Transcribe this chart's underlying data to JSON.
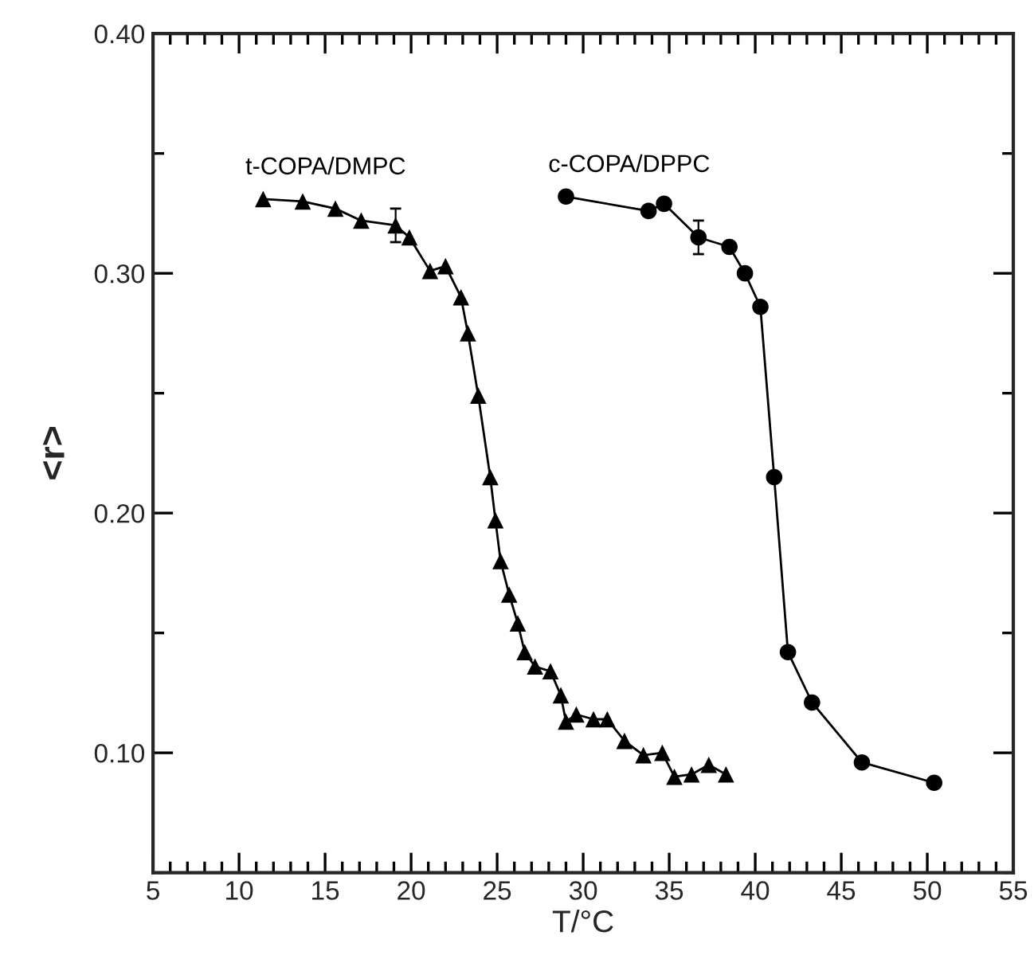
{
  "chart_data": {
    "type": "line",
    "xlabel": "T/°C",
    "ylabel": "<r>",
    "xlim": [
      5,
      55
    ],
    "ylim": [
      0.05,
      0.4
    ],
    "xticks": [
      5,
      10,
      15,
      20,
      25,
      30,
      35,
      40,
      45,
      50,
      55,
      {
        "value": 6,
        "label": null
      },
      {
        "value": 7,
        "label": null
      },
      {
        "value": 8,
        "label": null
      },
      {
        "value": 9,
        "label": null
      },
      {
        "value": 11,
        "label": null
      },
      {
        "value": 12,
        "label": null
      },
      {
        "value": 13,
        "label": null
      },
      {
        "value": 14,
        "label": null
      },
      {
        "value": 16,
        "label": null
      },
      {
        "value": 17,
        "label": null
      },
      {
        "value": 18,
        "label": null
      },
      {
        "value": 19,
        "label": null
      },
      {
        "value": 21,
        "label": null
      },
      {
        "value": 22,
        "label": null
      },
      {
        "value": 23,
        "label": null
      },
      {
        "value": 24,
        "label": null
      },
      {
        "value": 26,
        "label": null
      },
      {
        "value": 27,
        "label": null
      },
      {
        "value": 28,
        "label": null
      },
      {
        "value": 29,
        "label": null
      },
      {
        "value": 31,
        "label": null
      },
      {
        "value": 32,
        "label": null
      },
      {
        "value": 33,
        "label": null
      },
      {
        "value": 34,
        "label": null
      },
      {
        "value": 36,
        "label": null
      },
      {
        "value": 37,
        "label": null
      },
      {
        "value": 38,
        "label": null
      },
      {
        "value": 39,
        "label": null
      },
      {
        "value": 41,
        "label": null
      },
      {
        "value": 42,
        "label": null
      },
      {
        "value": 43,
        "label": null
      },
      {
        "value": 44,
        "label": null
      },
      {
        "value": 46,
        "label": null
      },
      {
        "value": 47,
        "label": null
      },
      {
        "value": 48,
        "label": null
      },
      {
        "value": 49,
        "label": null
      },
      {
        "value": 51,
        "label": null
      },
      {
        "value": 52,
        "label": null
      },
      {
        "value": 53,
        "label": null
      },
      {
        "value": 54,
        "label": null
      }
    ],
    "yticks": [
      {
        "value": 0.1,
        "label": "0.10"
      },
      {
        "value": 0.2,
        "label": "0.20"
      },
      {
        "value": 0.3,
        "label": "0.30"
      },
      {
        "value": 0.4,
        "label": "0.40"
      },
      {
        "value": 0.05,
        "label": null
      },
      {
        "value": 0.15,
        "label": null
      },
      {
        "value": 0.25,
        "label": null
      },
      {
        "value": 0.35,
        "label": null
      }
    ],
    "grid": false,
    "legend": false,
    "series": [
      {
        "name": "t-COPA/DMPC",
        "color": "#000000",
        "marker": "triangle",
        "line_style": "solid",
        "x": [
          11.4,
          13.7,
          15.6,
          17.1,
          19.1,
          19.9,
          21.1,
          22.0,
          22.9,
          23.3,
          23.9,
          24.6,
          24.9,
          25.2,
          25.7,
          26.2,
          26.6,
          27.2,
          28.1,
          28.7,
          29.0,
          29.6,
          30.6,
          31.4,
          32.4,
          33.5,
          34.6,
          35.3,
          36.3,
          37.3,
          38.3
        ],
        "values": [
          0.331,
          0.33,
          0.327,
          0.322,
          0.32,
          0.315,
          0.301,
          0.303,
          0.29,
          0.275,
          0.249,
          0.215,
          0.197,
          0.18,
          0.166,
          0.154,
          0.142,
          0.136,
          0.134,
          0.124,
          0.113,
          0.116,
          0.114,
          0.114,
          0.105,
          0.099,
          0.1,
          0.09,
          0.091,
          0.095,
          0.091
        ],
        "errors": [
          null,
          null,
          null,
          null,
          0.007,
          null,
          null,
          null,
          null,
          null,
          null,
          null,
          null,
          null,
          null,
          null,
          null,
          null,
          null,
          null,
          null,
          null,
          null,
          null,
          null,
          null,
          null,
          null,
          null,
          null,
          null
        ]
      },
      {
        "name": "c-COPA/DPPC",
        "color": "#000000",
        "marker": "circle",
        "line_style": "solid",
        "x": [
          29.0,
          33.8,
          34.7,
          36.7,
          38.5,
          39.4,
          40.3,
          41.1,
          41.9,
          43.3,
          46.2,
          50.4
        ],
        "values": [
          0.332,
          0.326,
          0.329,
          0.315,
          0.311,
          0.3,
          0.286,
          0.215,
          0.142,
          0.121,
          0.096,
          0.0875
        ],
        "errors": [
          null,
          null,
          null,
          0.007,
          null,
          null,
          null,
          null,
          null,
          null,
          null,
          null
        ]
      }
    ]
  }
}
